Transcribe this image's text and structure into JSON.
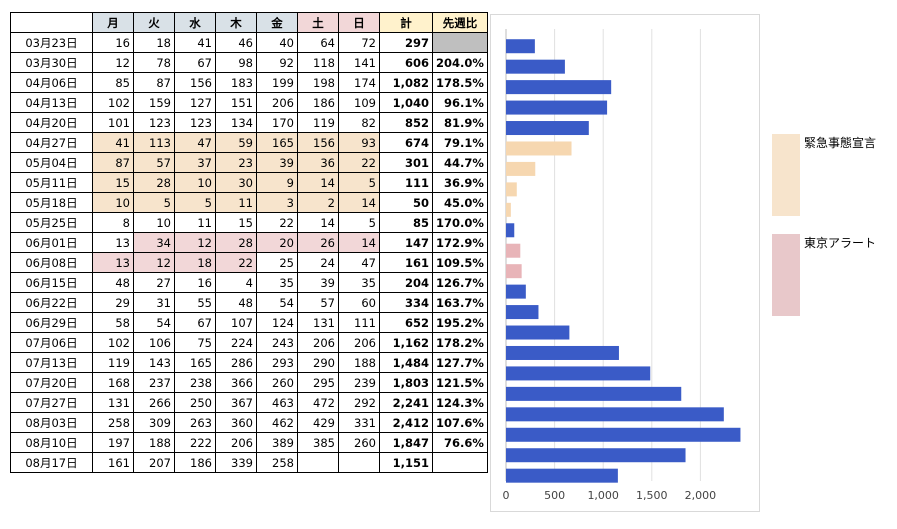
{
  "table": {
    "columns": [
      "",
      "月",
      "火",
      "水",
      "木",
      "金",
      "土",
      "日",
      "計",
      "先週比"
    ],
    "rows": [
      {
        "date": "03月23日",
        "mon": "16",
        "tue": "18",
        "wed": "41",
        "thu": "46",
        "fri": "40",
        "sat": "64",
        "sun": "72",
        "total": "297",
        "ratio": ""
      },
      {
        "date": "03月30日",
        "mon": "12",
        "tue": "78",
        "wed": "67",
        "thu": "98",
        "fri": "92",
        "sat": "118",
        "sun": "141",
        "total": "606",
        "ratio": "204.0%"
      },
      {
        "date": "04月06日",
        "mon": "85",
        "tue": "87",
        "wed": "156",
        "thu": "183",
        "fri": "199",
        "sat": "198",
        "sun": "174",
        "total": "1,082",
        "ratio": "178.5%"
      },
      {
        "date": "04月13日",
        "mon": "102",
        "tue": "159",
        "wed": "127",
        "thu": "151",
        "fri": "206",
        "sat": "186",
        "sun": "109",
        "total": "1,040",
        "ratio": "96.1%"
      },
      {
        "date": "04月20日",
        "mon": "101",
        "tue": "123",
        "wed": "123",
        "thu": "134",
        "fri": "170",
        "sat": "119",
        "sun": "82",
        "total": "852",
        "ratio": "81.9%"
      },
      {
        "date": "04月27日",
        "mon": "41",
        "tue": "113",
        "wed": "47",
        "thu": "59",
        "fri": "165",
        "sat": "156",
        "sun": "93",
        "total": "674",
        "ratio": "79.1%"
      },
      {
        "date": "05月04日",
        "mon": "87",
        "tue": "57",
        "wed": "37",
        "thu": "23",
        "fri": "39",
        "sat": "36",
        "sun": "22",
        "total": "301",
        "ratio": "44.7%"
      },
      {
        "date": "05月11日",
        "mon": "15",
        "tue": "28",
        "wed": "10",
        "thu": "30",
        "fri": "9",
        "sat": "14",
        "sun": "5",
        "total": "111",
        "ratio": "36.9%"
      },
      {
        "date": "05月18日",
        "mon": "10",
        "tue": "5",
        "wed": "5",
        "thu": "11",
        "fri": "3",
        "sat": "2",
        "sun": "14",
        "total": "50",
        "ratio": "45.0%"
      },
      {
        "date": "05月25日",
        "mon": "8",
        "tue": "10",
        "wed": "11",
        "thu": "15",
        "fri": "22",
        "sat": "14",
        "sun": "5",
        "total": "85",
        "ratio": "170.0%"
      },
      {
        "date": "06月01日",
        "mon": "13",
        "tue": "34",
        "wed": "12",
        "thu": "28",
        "fri": "20",
        "sat": "26",
        "sun": "14",
        "total": "147",
        "ratio": "172.9%"
      },
      {
        "date": "06月08日",
        "mon": "13",
        "tue": "12",
        "wed": "18",
        "thu": "22",
        "fri": "25",
        "sat": "24",
        "sun": "47",
        "total": "161",
        "ratio": "109.5%"
      },
      {
        "date": "06月15日",
        "mon": "48",
        "tue": "27",
        "wed": "16",
        "thu": "4",
        "fri": "35",
        "sat": "39",
        "sun": "35",
        "total": "204",
        "ratio": "126.7%"
      },
      {
        "date": "06月22日",
        "mon": "29",
        "tue": "31",
        "wed": "55",
        "thu": "48",
        "fri": "54",
        "sat": "57",
        "sun": "60",
        "total": "334",
        "ratio": "163.7%"
      },
      {
        "date": "06月29日",
        "mon": "58",
        "tue": "54",
        "wed": "67",
        "thu": "107",
        "fri": "124",
        "sat": "131",
        "sun": "111",
        "total": "652",
        "ratio": "195.2%"
      },
      {
        "date": "07月06日",
        "mon": "102",
        "tue": "106",
        "wed": "75",
        "thu": "224",
        "fri": "243",
        "sat": "206",
        "sun": "206",
        "total": "1,162",
        "ratio": "178.2%"
      },
      {
        "date": "07月13日",
        "mon": "119",
        "tue": "143",
        "wed": "165",
        "thu": "286",
        "fri": "293",
        "sat": "290",
        "sun": "188",
        "total": "1,484",
        "ratio": "127.7%"
      },
      {
        "date": "07月20日",
        "mon": "168",
        "tue": "237",
        "wed": "238",
        "thu": "366",
        "fri": "260",
        "sat": "295",
        "sun": "239",
        "total": "1,803",
        "ratio": "121.5%"
      },
      {
        "date": "07月27日",
        "mon": "131",
        "tue": "266",
        "wed": "250",
        "thu": "367",
        "fri": "463",
        "sat": "472",
        "sun": "292",
        "total": "2,241",
        "ratio": "124.3%"
      },
      {
        "date": "08月03日",
        "mon": "258",
        "tue": "309",
        "wed": "263",
        "thu": "360",
        "fri": "462",
        "sat": "429",
        "sun": "331",
        "total": "2,412",
        "ratio": "107.6%"
      },
      {
        "date": "08月10日",
        "mon": "197",
        "tue": "188",
        "wed": "222",
        "thu": "206",
        "fri": "389",
        "sat": "385",
        "sun": "260",
        "total": "1,847",
        "ratio": "76.6%"
      },
      {
        "date": "08月17日",
        "mon": "161",
        "tue": "207",
        "wed": "186",
        "thu": "339",
        "fri": "258",
        "sat": "",
        "sun": "",
        "total": "1,151",
        "ratio": ""
      }
    ],
    "emergency_cells": [
      [
        5,
        0,
        6
      ],
      [
        6,
        0,
        6
      ],
      [
        7,
        0,
        6
      ],
      [
        8,
        0,
        6
      ]
    ],
    "alert_cells": [
      [
        10,
        1,
        6
      ],
      [
        11,
        0,
        3
      ]
    ],
    "colors": {
      "weekday_header": "#d9e1e7",
      "weekend_header": "#f2d7d8",
      "total_header": "#fff2cc",
      "ratio_header": "#fff2cc",
      "emergency": "#f7e4cc",
      "alert": "#f2d7d8",
      "blank_ratio": "#bfbfbf"
    }
  },
  "chart_data": {
    "type": "bar",
    "orientation": "horizontal",
    "categories": [
      "03月23日",
      "03月30日",
      "04月06日",
      "04月13日",
      "04月20日",
      "04月27日",
      "05月04日",
      "05月11日",
      "05月18日",
      "05月25日",
      "06月01日",
      "06月08日",
      "06月15日",
      "06月22日",
      "06月29日",
      "07月06日",
      "07月13日",
      "07月20日",
      "07月27日",
      "08月03日",
      "08月10日",
      "08月17日"
    ],
    "values": [
      297,
      606,
      1082,
      1040,
      852,
      674,
      301,
      111,
      50,
      85,
      147,
      161,
      204,
      334,
      652,
      1162,
      1484,
      1803,
      2241,
      2412,
      1847,
      1151
    ],
    "bar_category": [
      "normal",
      "normal",
      "normal",
      "normal",
      "normal",
      "emergency",
      "emergency",
      "emergency",
      "emergency",
      "normal",
      "alert",
      "alert",
      "normal",
      "normal",
      "normal",
      "normal",
      "normal",
      "normal",
      "normal",
      "normal",
      "normal",
      "normal"
    ],
    "xlim": [
      0,
      2500
    ],
    "x_ticks": [
      0,
      500,
      1000,
      1500,
      2000
    ],
    "x_tick_labels": [
      "0",
      "500",
      "1,000",
      "1,500",
      "2,000"
    ],
    "grid": true,
    "legend_position": "right",
    "colors": {
      "normal": "#3a5bc7",
      "emergency": "#f6d7b0",
      "alert": "#e8b4b8",
      "grid": "#e0e0e0",
      "axis": "#bdbdbd"
    }
  },
  "legend": {
    "items": [
      {
        "label": "緊急事態宣言",
        "color": "#f7e4cc"
      },
      {
        "label": "東京アラート",
        "color": "#e8c8ca"
      }
    ]
  }
}
